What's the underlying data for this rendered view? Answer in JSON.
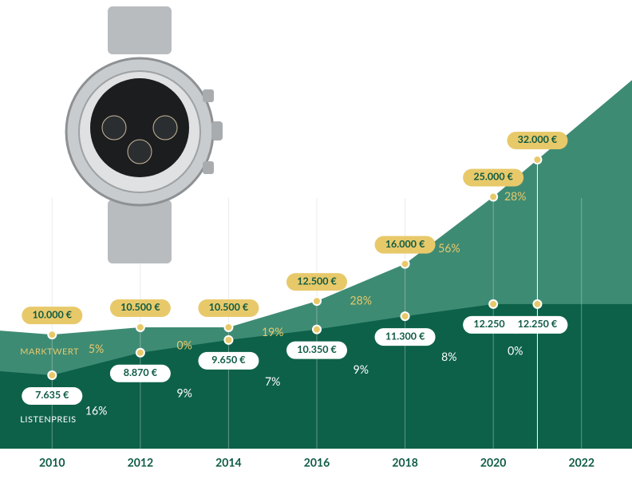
{
  "chart_data": {
    "type": "line",
    "x": [
      2010,
      2012,
      2014,
      2016,
      2018,
      2020,
      2021
    ],
    "xlim": [
      2009,
      2023
    ],
    "xticks": [
      2010,
      2012,
      2014,
      2016,
      2018,
      2020,
      2022
    ],
    "log_scale": true,
    "series": [
      {
        "name": "MARKTWERT",
        "color": "#e8c96a",
        "values": [
          10000,
          10500,
          10500,
          12500,
          16000,
          25000,
          32000
        ],
        "value_labels": [
          "10.000 €",
          "10.500 €",
          "10.500 €",
          "12.500 €",
          "16.000 €",
          "25.000 €",
          "32.000 €"
        ],
        "changes": [
          "5%",
          "0%",
          "19%",
          "28%",
          "56%",
          "28%"
        ]
      },
      {
        "name": "LISTENPREIS",
        "color": "#ffffff",
        "values": [
          7635,
          8870,
          9650,
          10350,
          11300,
          12250,
          12250
        ],
        "value_labels": [
          "7.635 €",
          "8.870 €",
          "9.650 €",
          "10.350 €",
          "11.300 €",
          "12.250 €",
          "12.250 €"
        ],
        "changes": [
          "16%",
          "9%",
          "7%",
          "9%",
          "8%",
          "0%"
        ]
      }
    ]
  }
}
